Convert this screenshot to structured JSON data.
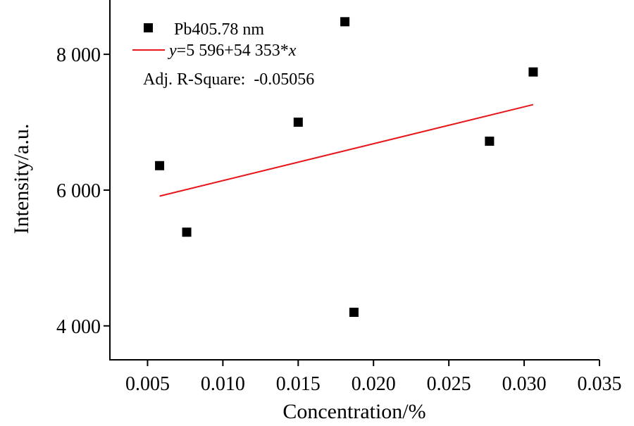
{
  "chart_data": {
    "type": "scatter",
    "xlabel": "Concentration/%",
    "ylabel": "Intensity/a.u.",
    "xlim": [
      0.0025,
      0.035
    ],
    "ylim": [
      3500,
      8800
    ],
    "x_ticks": [
      0.005,
      0.01,
      0.015,
      0.02,
      0.025,
      0.03,
      0.035
    ],
    "x_tick_labels": [
      "0.005",
      "0.010",
      "0.015",
      "0.020",
      "0.025",
      "0.030",
      "0.035"
    ],
    "y_ticks": [
      4000,
      6000,
      8000
    ],
    "y_tick_labels": [
      "4 000",
      "6 000",
      "8 000"
    ],
    "grid": false,
    "legend_placement": "top-left",
    "series": [
      {
        "name": "Pb405.78 nm",
        "marker": "square",
        "color": "#000000",
        "x": [
          0.0058,
          0.0076,
          0.015,
          0.0181,
          0.0187,
          0.0277,
          0.0306
        ],
        "y": [
          6360,
          5380,
          7000,
          8480,
          4200,
          6720,
          7740
        ]
      }
    ],
    "fit": {
      "color": "#e8161b",
      "intercept": 5596,
      "slope": 54353,
      "x_range": [
        0.0058,
        0.0306
      ],
      "equation_parts": [
        "y",
        "=5 596+54 353*",
        "x"
      ],
      "adj_r_square_label": "Adj. R-Square:  -0.05056"
    }
  }
}
